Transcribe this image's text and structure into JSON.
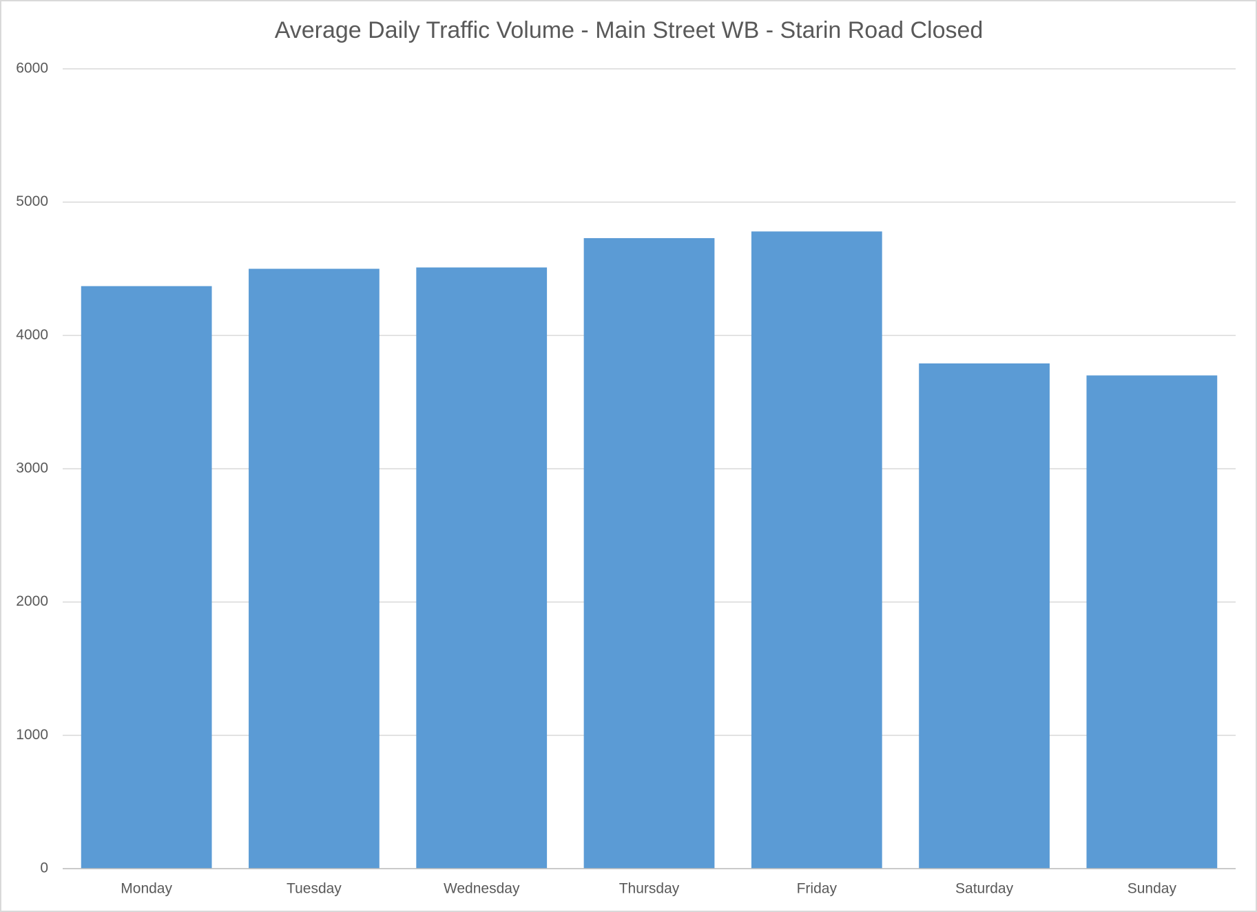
{
  "chart_data": {
    "type": "bar",
    "title": "Average Daily Traffic Volume - Main Street WB - Starin Road Closed",
    "categories": [
      "Monday",
      "Tuesday",
      "Wednesday",
      "Thursday",
      "Friday",
      "Saturday",
      "Sunday"
    ],
    "values": [
      4370,
      4500,
      4510,
      4730,
      4780,
      3790,
      3700
    ],
    "color": "#5b9bd5",
    "ylim": [
      0,
      6000
    ],
    "yticks": [
      0,
      1000,
      2000,
      3000,
      4000,
      5000,
      6000
    ],
    "grid": true
  }
}
